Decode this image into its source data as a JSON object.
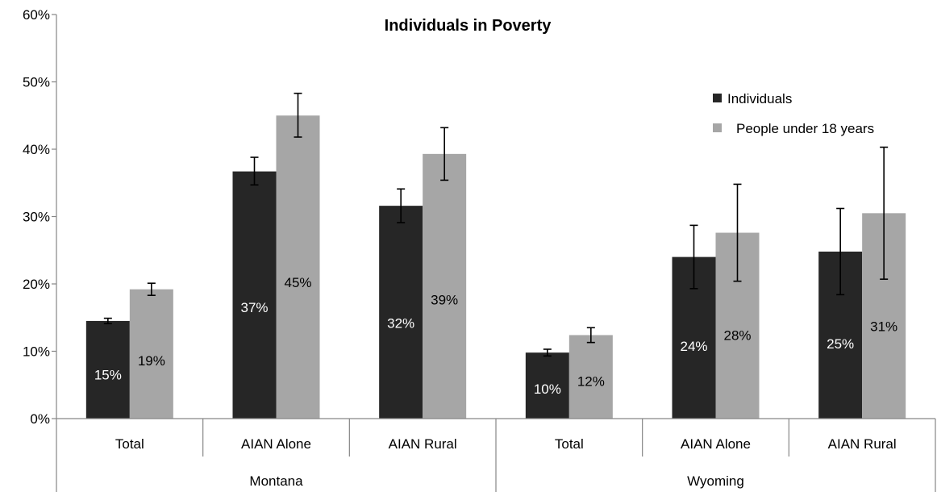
{
  "chart_data": {
    "type": "bar",
    "title": "Individuals in Poverty",
    "xlabel": "",
    "ylabel": "",
    "ylim": [
      0,
      60
    ],
    "yticks": [
      "0%",
      "10%",
      "20%",
      "30%",
      "40%",
      "50%",
      "60%"
    ],
    "grid": false,
    "legend_position": "top-right",
    "categories": [
      "Total",
      "AIAN Alone",
      "AIAN Rural",
      "Total",
      "AIAN Alone",
      "AIAN Rural"
    ],
    "groups": [
      {
        "label": "Montana",
        "categories": [
          "Total",
          "AIAN Alone",
          "AIAN Rural"
        ]
      },
      {
        "label": "Wyoming",
        "categories": [
          "Total",
          "AIAN Alone",
          "AIAN Rural"
        ]
      }
    ],
    "series": [
      {
        "name": "Individuals",
        "color": "#262626",
        "label_color": "#ffffff",
        "values": [
          14.5,
          36.7,
          31.6,
          9.8,
          24.0,
          24.8
        ],
        "labels": [
          "15%",
          "37%",
          "32%",
          "10%",
          "24%",
          "25%"
        ],
        "error_low": [
          14.1,
          34.7,
          29.1,
          9.3,
          19.3,
          18.4
        ],
        "error_high": [
          14.9,
          38.8,
          34.1,
          10.3,
          28.7,
          31.2
        ]
      },
      {
        "name": "People under 18 years",
        "color": "#a6a6a6",
        "label_color": "#000000",
        "values": [
          19.2,
          45.0,
          39.3,
          12.4,
          27.6,
          30.5
        ],
        "labels": [
          "19%",
          "45%",
          "39%",
          "12%",
          "28%",
          "31%"
        ],
        "error_low": [
          18.3,
          41.8,
          35.4,
          11.3,
          20.4,
          20.7
        ],
        "error_high": [
          20.1,
          48.3,
          43.2,
          13.5,
          34.8,
          40.3
        ]
      }
    ]
  }
}
